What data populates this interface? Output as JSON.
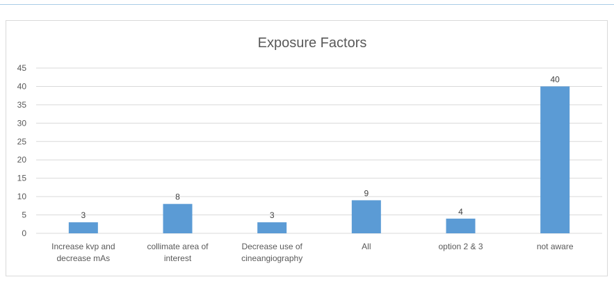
{
  "chart_data": {
    "type": "bar",
    "title": "Exposure Factors",
    "xlabel": "",
    "ylabel": "",
    "categories": [
      [
        "Increase kvp and",
        "decrease mAs"
      ],
      [
        "collimate area of",
        "interest"
      ],
      [
        "Decrease use of",
        "cineangiography"
      ],
      [
        "All"
      ],
      [
        "option 2 & 3"
      ],
      [
        "not aware"
      ]
    ],
    "values": [
      3,
      8,
      3,
      9,
      4,
      40
    ],
    "ylim": [
      0,
      45
    ],
    "yticks": [
      0,
      5,
      10,
      15,
      20,
      25,
      30,
      35,
      40,
      45
    ],
    "grid": true,
    "legend": "none",
    "data_labels": true,
    "colors": {
      "bar": "#5b9bd5",
      "grid": "#d9d9d9",
      "text": "#595959",
      "frame_rule": "#a9cde6"
    }
  }
}
